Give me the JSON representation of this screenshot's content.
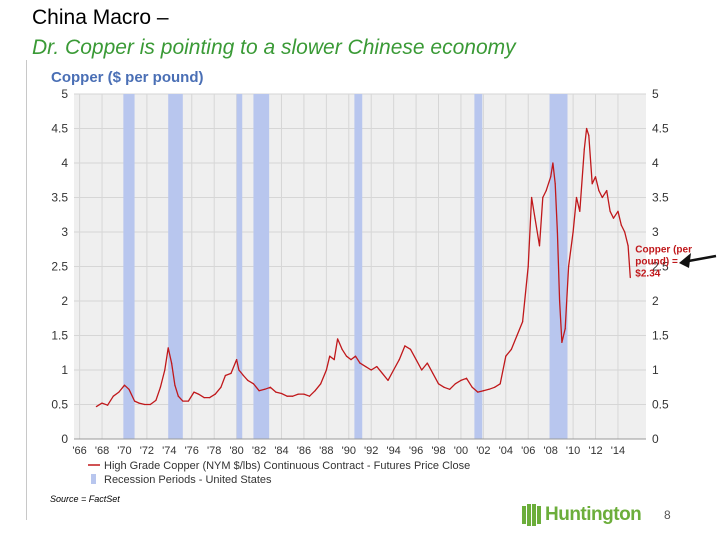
{
  "slide": {
    "title": "China Macro –",
    "subtitle": "Dr. Copper is pointing to a slower Chinese economy",
    "source": "Source = FactSet",
    "brand": "Huntington",
    "page_number": "8"
  },
  "colors": {
    "title": "#000000",
    "subtitle": "#3a9a36",
    "chart_title": "#4a6fb5",
    "series_line": "#c0181b",
    "recession_band": "#b8c6ee",
    "plot_background": "#efefef",
    "gridline": "#d6d6d6",
    "brand": "#6cae3b"
  },
  "chart_data": {
    "type": "line",
    "title": "Copper ($ per pound)",
    "xlim": [
      1965.5,
      2016.5
    ],
    "ylim": [
      0,
      5
    ],
    "x_ticks": [
      {
        "value": 1966,
        "label": "'66"
      },
      {
        "value": 1968,
        "label": "'68"
      },
      {
        "value": 1970,
        "label": "'70"
      },
      {
        "value": 1972,
        "label": "'72"
      },
      {
        "value": 1974,
        "label": "'74"
      },
      {
        "value": 1976,
        "label": "'76"
      },
      {
        "value": 1978,
        "label": "'78"
      },
      {
        "value": 1980,
        "label": "'80"
      },
      {
        "value": 1982,
        "label": "'82"
      },
      {
        "value": 1984,
        "label": "'84"
      },
      {
        "value": 1986,
        "label": "'86"
      },
      {
        "value": 1988,
        "label": "'88"
      },
      {
        "value": 1990,
        "label": "'90"
      },
      {
        "value": 1992,
        "label": "'92"
      },
      {
        "value": 1994,
        "label": "'94"
      },
      {
        "value": 1996,
        "label": "'96"
      },
      {
        "value": 1998,
        "label": "'98"
      },
      {
        "value": 2000,
        "label": "'00"
      },
      {
        "value": 2002,
        "label": "'02"
      },
      {
        "value": 2004,
        "label": "'04"
      },
      {
        "value": 2006,
        "label": "'06"
      },
      {
        "value": 2008,
        "label": "'08"
      },
      {
        "value": 2010,
        "label": "'10"
      },
      {
        "value": 2012,
        "label": "'12"
      },
      {
        "value": 2014,
        "label": "'14"
      }
    ],
    "y_ticks": [
      {
        "value": 0,
        "label": "0"
      },
      {
        "value": 0.5,
        "label": "0.5"
      },
      {
        "value": 1,
        "label": "1"
      },
      {
        "value": 1.5,
        "label": "1.5"
      },
      {
        "value": 2,
        "label": "2"
      },
      {
        "value": 2.5,
        "label": "2.5"
      },
      {
        "value": 3,
        "label": "3"
      },
      {
        "value": 3.5,
        "label": "3.5"
      },
      {
        "value": 4,
        "label": "4"
      },
      {
        "value": 4.5,
        "label": "4.5"
      },
      {
        "value": 5,
        "label": "5"
      }
    ],
    "grid": true,
    "recessions": [
      {
        "start": 1969.9,
        "end": 1970.9
      },
      {
        "start": 1973.9,
        "end": 1975.2
      },
      {
        "start": 1980.0,
        "end": 1980.5
      },
      {
        "start": 1981.5,
        "end": 1982.9
      },
      {
        "start": 1990.5,
        "end": 1991.2
      },
      {
        "start": 2001.2,
        "end": 2001.9
      },
      {
        "start": 2007.9,
        "end": 2009.5
      }
    ],
    "series": [
      {
        "name": "High Grade Copper (NYM $/lbs) Continuous Contract - Futures Price Close",
        "x": [
          1967.5,
          1968.0,
          1968.5,
          1969.0,
          1969.5,
          1970.0,
          1970.4,
          1970.9,
          1971.3,
          1971.8,
          1972.3,
          1972.8,
          1973.2,
          1973.6,
          1973.9,
          1974.2,
          1974.5,
          1974.8,
          1975.2,
          1975.7,
          1976.2,
          1976.6,
          1977.1,
          1977.6,
          1978.1,
          1978.6,
          1979.0,
          1979.5,
          1980.0,
          1980.2,
          1980.6,
          1981.0,
          1981.5,
          1982.0,
          1982.5,
          1983.0,
          1983.5,
          1984.0,
          1984.5,
          1985.0,
          1985.5,
          1986.0,
          1986.5,
          1987.0,
          1987.5,
          1988.0,
          1988.3,
          1988.7,
          1989.0,
          1989.4,
          1989.8,
          1990.2,
          1990.6,
          1991.0,
          1991.5,
          1992.0,
          1992.5,
          1993.0,
          1993.5,
          1994.0,
          1994.5,
          1995.0,
          1995.5,
          1996.0,
          1996.5,
          1997.0,
          1997.5,
          1998.0,
          1998.5,
          1999.0,
          1999.5,
          2000.0,
          2000.5,
          2001.0,
          2001.5,
          2002.0,
          2002.5,
          2003.0,
          2003.5,
          2004.0,
          2004.5,
          2005.0,
          2005.5,
          2006.0,
          2006.3,
          2006.6,
          2007.0,
          2007.3,
          2007.6,
          2008.0,
          2008.2,
          2008.4,
          2008.6,
          2008.8,
          2009.0,
          2009.3,
          2009.6,
          2010.0,
          2010.3,
          2010.6,
          2011.0,
          2011.2,
          2011.4,
          2011.7,
          2012.0,
          2012.3,
          2012.6,
          2013.0,
          2013.3,
          2013.6,
          2014.0,
          2014.3,
          2014.6,
          2014.9,
          2015.1
        ],
        "y": [
          0.47,
          0.52,
          0.49,
          0.62,
          0.68,
          0.78,
          0.72,
          0.55,
          0.52,
          0.5,
          0.5,
          0.56,
          0.75,
          1.0,
          1.32,
          1.1,
          0.78,
          0.62,
          0.55,
          0.55,
          0.68,
          0.65,
          0.6,
          0.6,
          0.65,
          0.75,
          0.92,
          0.95,
          1.15,
          1.0,
          0.92,
          0.85,
          0.8,
          0.7,
          0.72,
          0.75,
          0.68,
          0.66,
          0.62,
          0.62,
          0.65,
          0.65,
          0.62,
          0.7,
          0.8,
          1.0,
          1.2,
          1.15,
          1.45,
          1.3,
          1.2,
          1.15,
          1.2,
          1.1,
          1.05,
          1.0,
          1.05,
          0.95,
          0.85,
          1.0,
          1.15,
          1.35,
          1.3,
          1.15,
          1.0,
          1.1,
          0.95,
          0.8,
          0.75,
          0.72,
          0.8,
          0.85,
          0.88,
          0.75,
          0.68,
          0.7,
          0.72,
          0.75,
          0.8,
          1.2,
          1.3,
          1.5,
          1.7,
          2.5,
          3.5,
          3.2,
          2.8,
          3.5,
          3.6,
          3.8,
          4.0,
          3.7,
          3.0,
          2.0,
          1.4,
          1.6,
          2.5,
          3.0,
          3.5,
          3.3,
          4.2,
          4.5,
          4.4,
          3.7,
          3.8,
          3.6,
          3.5,
          3.6,
          3.3,
          3.2,
          3.3,
          3.1,
          3.0,
          2.8,
          2.34
        ]
      },
      {
        "name": "Recession Periods - United States"
      }
    ],
    "annotation": {
      "x": 2015.1,
      "y": 2.34,
      "text": [
        "Copper (per",
        "pound) =",
        "$2.34"
      ]
    }
  }
}
